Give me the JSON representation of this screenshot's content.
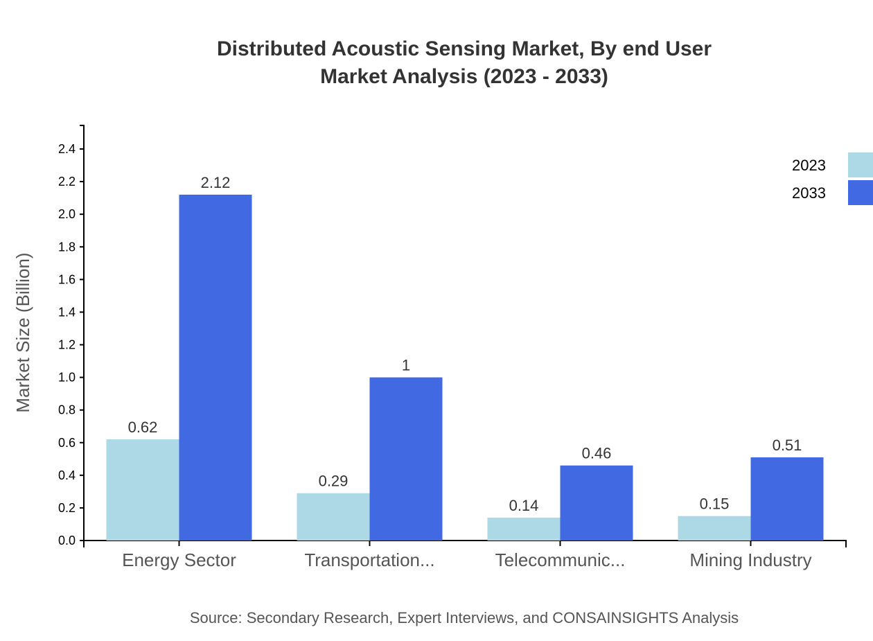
{
  "chart_data": {
    "type": "bar",
    "title": "Distributed Acoustic Sensing Market, By end User",
    "subtitle": "Market Analysis (2023 - 2033)",
    "xlabel": "",
    "ylabel": "Market Size (Billion)",
    "ylim": [
      0,
      2.5
    ],
    "yticks": [
      "0.0",
      "0.2",
      "0.4",
      "0.6",
      "0.8",
      "1.0",
      "1.2",
      "1.4",
      "1.6",
      "1.8",
      "2.0",
      "2.2",
      "2.4"
    ],
    "categories": [
      "Energy Sector",
      "Transportation...",
      "Telecommunic...",
      "Mining Industry"
    ],
    "series": [
      {
        "name": "2023",
        "color": "#ADD8E6",
        "values": [
          0.62,
          0.29,
          0.14,
          0.15
        ],
        "labels": [
          "0.62",
          "0.29",
          "0.14",
          "0.15"
        ]
      },
      {
        "name": "2033",
        "color": "#4169E1",
        "values": [
          2.12,
          1,
          0.46,
          0.51
        ],
        "labels": [
          "2.12",
          "1",
          "0.46",
          "0.51"
        ]
      }
    ],
    "legend": "top-right",
    "grid": false,
    "source": "Source: Secondary Research, Expert Interviews, and CONSAINSIGHTS Analysis"
  }
}
